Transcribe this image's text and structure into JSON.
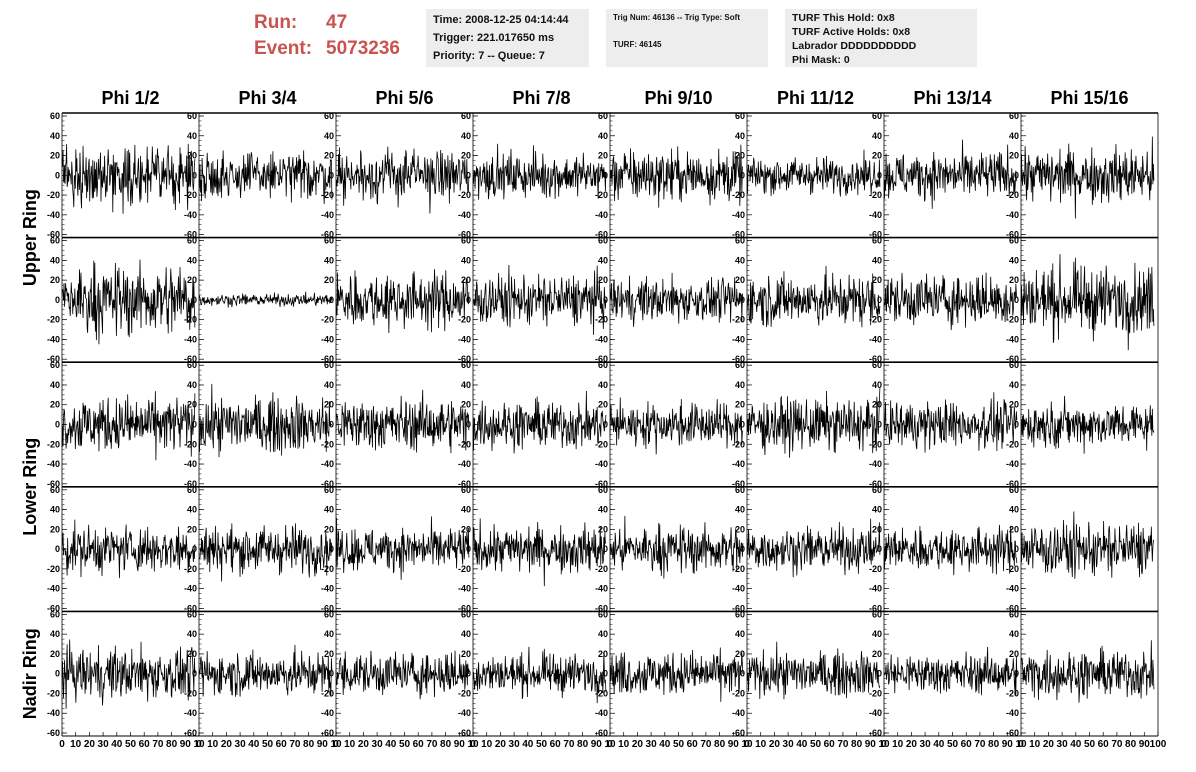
{
  "run": {
    "run_label": "Run:",
    "run_value": "47",
    "event_label": "Event:",
    "event_value": "5073236"
  },
  "info_time": [
    "Time: 2008-12-25 04:14:44",
    "Trigger: 221.017650 ms",
    "Priority: 7 -- Queue: 7"
  ],
  "info_trig": [
    "Trig Num: 46136 -- Trig Type: Soft",
    "TURF: 46145"
  ],
  "info_turf": [
    "TURF This Hold: 0x8",
    "TURF Active Holds: 0x8",
    "Labrador DDDDDDDDDD",
    "Phi Mask: 0"
  ],
  "chart_data": {
    "type": "line",
    "columns": [
      "Phi 1/2",
      "Phi 3/4",
      "Phi 5/6",
      "Phi 7/8",
      "Phi 9/10",
      "Phi 11/12",
      "Phi 13/14",
      "Phi 15/16"
    ],
    "rows": [
      "Upper Ring",
      "",
      "Lower Ring",
      "",
      "Nadir Ring"
    ],
    "ylim": [
      -60,
      60
    ],
    "yticks": [
      "60",
      "40",
      "20",
      "0",
      "-20",
      "-40",
      "-60"
    ],
    "xlim": [
      0,
      100
    ],
    "xticks": [
      "0",
      "10",
      "20",
      "30",
      "40",
      "50",
      "60",
      "70",
      "80",
      "90",
      "10"
    ],
    "xticks_last": [
      "0",
      "10",
      "20",
      "30",
      "40",
      "50",
      "60",
      "70",
      "80",
      "90",
      "100"
    ],
    "samples_per_trace": 260,
    "trace_x_end": 97,
    "amplitude": [
      [
        14,
        12,
        13,
        11,
        13,
        9,
        12,
        14
      ],
      [
        18,
        3,
        14,
        13,
        11,
        13,
        13,
        17
      ],
      [
        14,
        14,
        13,
        12,
        11,
        13,
        12,
        11
      ],
      [
        12,
        12,
        11,
        12,
        12,
        11,
        11,
        14
      ],
      [
        13,
        11,
        11,
        10,
        11,
        11,
        10,
        12
      ]
    ],
    "colors": {
      "trace": "#000000",
      "frame": "#000000"
    }
  }
}
